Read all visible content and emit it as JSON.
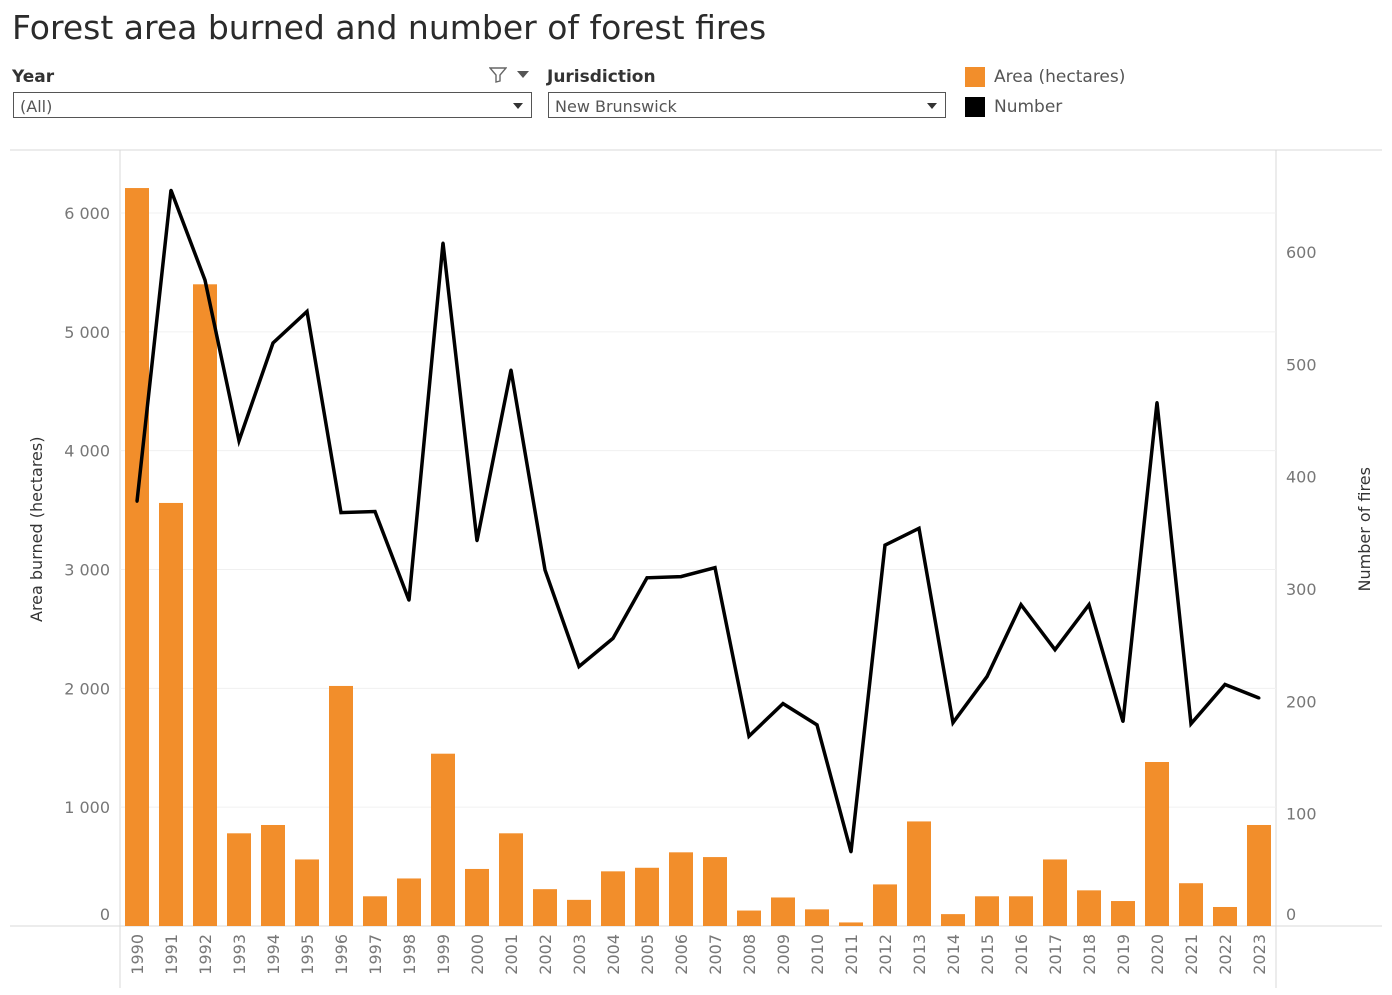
{
  "title": "Forest area burned and number of forest fires",
  "filters": {
    "year": {
      "label": "Year",
      "value": "(All)"
    },
    "jurisdiction": {
      "label": "Jurisdiction",
      "value": "New Brunswick"
    }
  },
  "icons": {
    "filter": "filter-icon",
    "dropdown": "chevron-down-icon"
  },
  "legend": [
    {
      "label": "Area (hectares)",
      "color": "#f28e2b"
    },
    {
      "label": "Number",
      "color": "#000000"
    }
  ],
  "chart_data": {
    "type": "bar",
    "title": "Forest area burned and number of forest fires",
    "categories": [
      "1990",
      "1991",
      "1992",
      "1993",
      "1994",
      "1995",
      "1996",
      "1997",
      "1998",
      "1999",
      "2000",
      "2001",
      "2002",
      "2003",
      "2004",
      "2005",
      "2006",
      "2007",
      "2008",
      "2009",
      "2010",
      "2011",
      "2012",
      "2013",
      "2014",
      "2015",
      "2016",
      "2017",
      "2018",
      "2019",
      "2020",
      "2021",
      "2022",
      "2023"
    ],
    "series": [
      {
        "name": "Area (hectares)",
        "type": "bar",
        "axis": "left",
        "color": "#f28e2b",
        "values": [
          6210,
          3560,
          5400,
          780,
          850,
          560,
          2020,
          250,
          400,
          1450,
          480,
          780,
          310,
          220,
          460,
          490,
          620,
          580,
          130,
          240,
          140,
          30,
          350,
          880,
          100,
          250,
          250,
          560,
          300,
          210,
          1380,
          360,
          160,
          850
        ]
      },
      {
        "name": "Number",
        "type": "line",
        "axis": "right",
        "color": "#000000",
        "values": [
          378,
          655,
          575,
          432,
          519,
          547,
          368,
          369,
          290,
          608,
          343,
          495,
          317,
          231,
          256,
          310,
          311,
          319,
          169,
          198,
          179,
          66,
          339,
          354,
          181,
          222,
          286,
          246,
          286,
          182,
          466,
          180,
          215,
          203
        ]
      }
    ],
    "ylabel": "Area burned (hectares)",
    "y2label": "Number of fires",
    "ylim": [
      0,
      6500
    ],
    "y2lim": [
      0,
      690
    ],
    "yticks": [
      "0",
      "1 000",
      "2 000",
      "3 000",
      "4 000",
      "5 000",
      "6 000"
    ],
    "y2ticks": [
      "0",
      "100",
      "200",
      "300",
      "400",
      "500",
      "600"
    ],
    "grid": true,
    "legend_position": "top-right"
  }
}
